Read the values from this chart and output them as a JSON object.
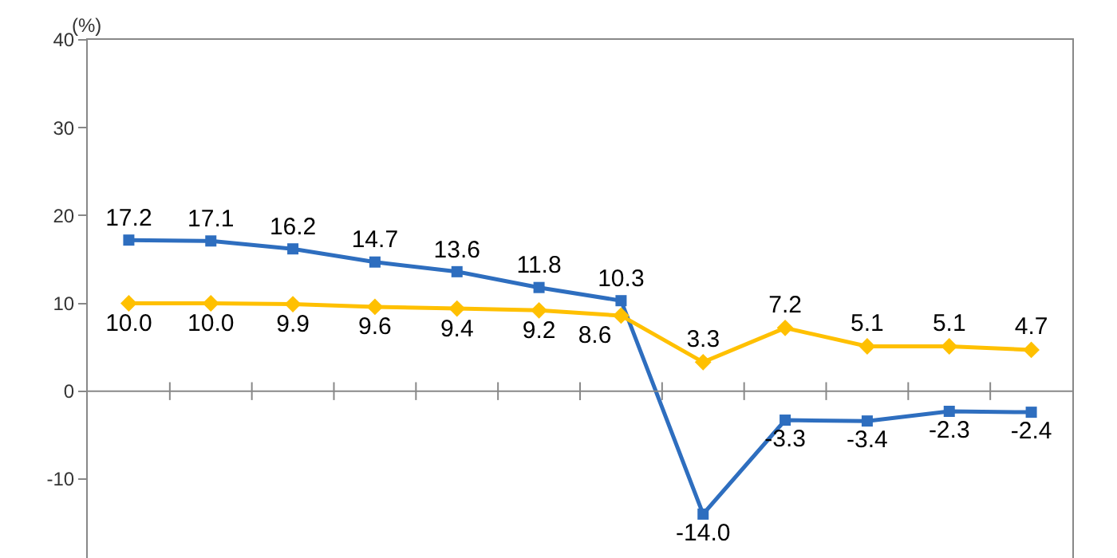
{
  "chart_data": {
    "type": "line",
    "ylabel": "(%)",
    "categories": [
      null,
      null,
      null,
      null,
      null,
      null,
      null,
      null,
      null,
      null,
      null,
      null
    ],
    "series": [
      {
        "color": "#2e6ebf",
        "marker": "square",
        "values": [
          17.2,
          17.1,
          16.2,
          14.7,
          13.6,
          11.8,
          10.3,
          -14,
          -3.3,
          -3.4,
          -2.3,
          -2.4
        ],
        "value_labels": [
          "17.2",
          "17.1",
          "16.2",
          "14.7",
          "13.6",
          "11.8",
          "10.3",
          "-14.0",
          "-3.3",
          "-3.4",
          "-2.3",
          "-2.4"
        ]
      },
      {
        "color": "#ffc000",
        "marker": "diamond",
        "values": [
          10,
          10,
          9.9,
          9.6,
          9.4,
          9.2,
          8.6,
          3.3,
          7.2,
          5.1,
          5.1,
          4.7
        ],
        "value_labels": [
          "10.0",
          "10.0",
          "9.9",
          "9.6",
          "9.4",
          "9.2",
          "8.6",
          "3.3",
          "7.2",
          "5.1",
          "5.1",
          "4.7"
        ]
      }
    ],
    "ylim": [
      -19,
      40
    ],
    "yticks": [
      -10,
      0,
      10,
      20,
      30,
      40
    ]
  }
}
